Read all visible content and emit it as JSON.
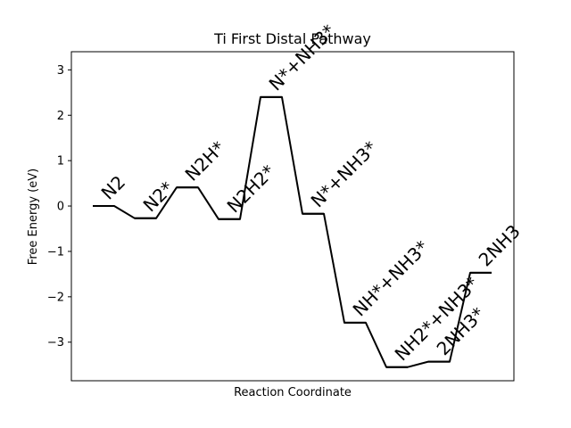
{
  "chart_data": {
    "type": "line",
    "title": "Ti First Distal Pathway",
    "xlabel": "Reaction Coordinate",
    "ylabel": "Free Energy (eV)",
    "ylim": [
      -3.85,
      3.4
    ],
    "yticks": [
      3,
      2,
      1,
      0,
      -1,
      -2,
      -3
    ],
    "ytick_labels": [
      "3",
      "2",
      "1",
      "0",
      "−1",
      "−2",
      "−3"
    ],
    "grid": false,
    "line_color": "#000000",
    "states": [
      {
        "label": "N2",
        "energy": 0.0
      },
      {
        "label": "N2*",
        "energy": -0.27
      },
      {
        "label": "N2H*",
        "energy": 0.41
      },
      {
        "label": "N2H2*",
        "energy": -0.29
      },
      {
        "label": "N*+NH3*",
        "energy": 2.4
      },
      {
        "label": "N*+NH3*",
        "energy": -0.17
      },
      {
        "label": "NH*+NH3*",
        "energy": -2.57
      },
      {
        "label": "NH2*+NH3*",
        "energy": -3.55
      },
      {
        "label": "2NH3*",
        "energy": -3.43
      },
      {
        "label": "2NH3",
        "energy": -1.47
      }
    ]
  }
}
